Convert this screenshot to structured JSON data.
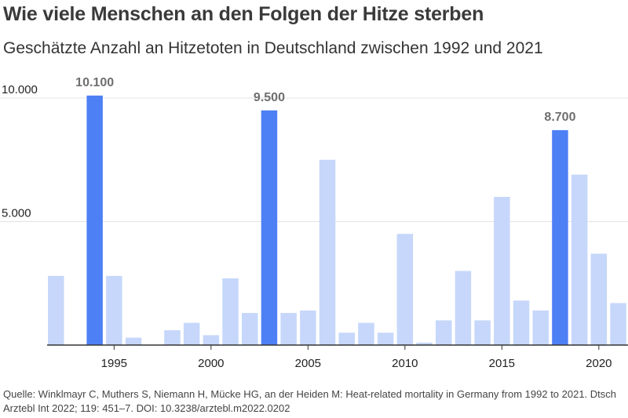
{
  "title": "Wie viele Menschen an den Folgen der Hitze sterben",
  "subtitle": "Geschätzte Anzahl an Hitzetoten in Deutschland zwischen 1992 und 2021",
  "source": "Quelle: Winklmayr C, Muthers S, Niemann H, Mücke HG, an der Heiden M: Heat-related mortality in Germany from 1992 to 2021. Dtsch Arztebl Int 2022; 119: 451–7. DOI: 10.3238/arztebl.m2022.0202",
  "colors": {
    "bar": "#c6d7fb",
    "highlight": "#4e80f5",
    "axis": "#333333",
    "grid": "#e3e3e3",
    "label": "#6f6f6f"
  },
  "chart_data": {
    "type": "bar",
    "title": "Wie viele Menschen an den Folgen der Hitze sterben",
    "subtitle": "Geschätzte Anzahl an Hitzetoten in Deutschland zwischen 1992 und 2021",
    "xlabel": "",
    "ylabel": "",
    "categories": [
      1992,
      1993,
      1994,
      1995,
      1996,
      1997,
      1998,
      1999,
      2000,
      2001,
      2002,
      2003,
      2004,
      2005,
      2006,
      2007,
      2008,
      2009,
      2010,
      2011,
      2012,
      2013,
      2014,
      2015,
      2016,
      2017,
      2018,
      2019,
      2020,
      2021
    ],
    "values": [
      2800,
      0,
      10100,
      2800,
      300,
      0,
      600,
      900,
      400,
      2700,
      1300,
      9500,
      1300,
      1400,
      7500,
      500,
      900,
      500,
      4500,
      100,
      1000,
      3000,
      1000,
      6000,
      1800,
      1400,
      8700,
      6900,
      3700,
      1700
    ],
    "highlighted": [
      1994,
      2003,
      2018
    ],
    "data_labels": [
      {
        "year": 1994,
        "label": "10.100"
      },
      {
        "year": 2003,
        "label": "9.500"
      },
      {
        "year": 2018,
        "label": "8.700"
      }
    ],
    "x_ticks": [
      {
        "year": 1995,
        "label": "1995"
      },
      {
        "year": 2000,
        "label": "2000"
      },
      {
        "year": 2005,
        "label": "2005"
      },
      {
        "year": 2010,
        "label": "2010"
      },
      {
        "year": 2015,
        "label": "2015"
      },
      {
        "year": 2020,
        "label": "2020"
      }
    ],
    "y_ticks": [
      {
        "value": 5000,
        "label": "5.000"
      },
      {
        "value": 10000,
        "label": "10.000"
      }
    ],
    "ylim": [
      0,
      10000
    ],
    "grid": true
  }
}
